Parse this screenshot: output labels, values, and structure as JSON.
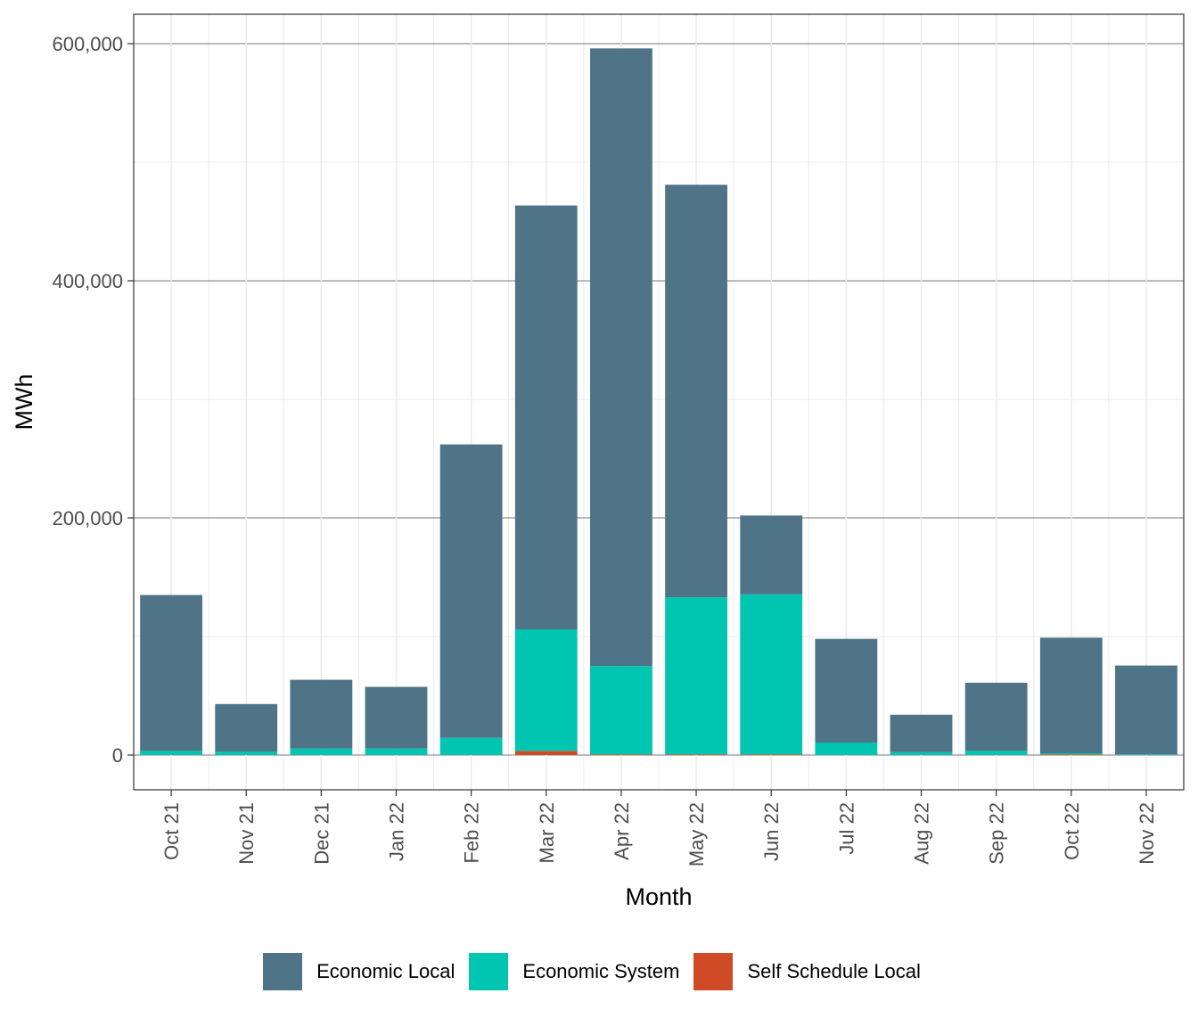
{
  "chart_data": {
    "type": "bar",
    "stacked": true,
    "xlabel": "Month",
    "ylabel": "MWh",
    "categories": [
      "Oct 21",
      "Nov 21",
      "Dec 21",
      "Jan 22",
      "Feb 22",
      "Mar 22",
      "Apr 22",
      "May 22",
      "Jun 22",
      "Jul 22",
      "Aug 22",
      "Sep 22",
      "Oct 22",
      "Nov 22"
    ],
    "series": [
      {
        "name": "Self Schedule Local",
        "color": "#d04a25",
        "values": [
          0,
          0,
          0,
          0,
          0,
          3500,
          500,
          500,
          500,
          0,
          0,
          0,
          500,
          0
        ]
      },
      {
        "name": "Economic System",
        "color": "#00c5b0",
        "values": [
          3500,
          3000,
          5500,
          5500,
          14500,
          102500,
          74500,
          132500,
          135000,
          10500,
          2500,
          3500,
          1000,
          500
        ]
      },
      {
        "name": "Economic Local",
        "color": "#4f7488",
        "values": [
          131500,
          40000,
          58000,
          52000,
          247500,
          357500,
          521000,
          348000,
          66500,
          87500,
          31500,
          57500,
          97500,
          75000
        ]
      }
    ],
    "ylim": [
      -30000,
      625000
    ],
    "yticks": [
      0,
      200000,
      400000,
      600000
    ],
    "ytick_labels": [
      "0",
      "200,000",
      "400,000",
      "600,000"
    ],
    "grid": true,
    "legend_position": "bottom"
  },
  "legend": {
    "items": [
      {
        "label": "Economic Local",
        "color": "#4f7488"
      },
      {
        "label": "Economic System",
        "color": "#00c5b0"
      },
      {
        "label": "Self Schedule Local",
        "color": "#d04a25"
      }
    ]
  }
}
